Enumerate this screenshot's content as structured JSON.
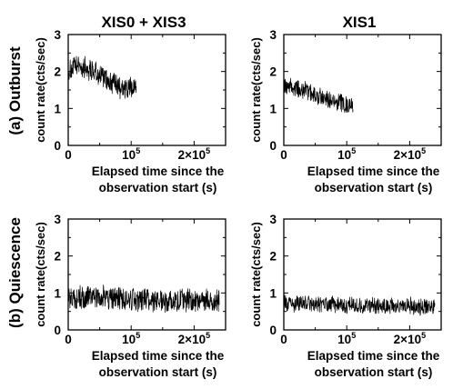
{
  "columns": [
    "XIS0 + XIS3",
    "XIS1"
  ],
  "rows": [
    "(a) Outburst",
    "(b) Quiescence"
  ],
  "chart_data": [
    {
      "type": "line",
      "row": 0,
      "col": 0,
      "ylabel": "count rate(cts/sec)",
      "xlabel_line1": "Elapsed time since the",
      "xlabel_line2": "observation start (s)",
      "xlim": [
        0,
        250000
      ],
      "ylim": [
        0,
        3
      ],
      "xticks": [
        {
          "v": 0,
          "m": "0",
          "e": ""
        },
        {
          "v": 100000,
          "m": "10",
          "e": "5"
        },
        {
          "v": 200000,
          "m": "2×10",
          "e": "5"
        }
      ],
      "yticks": [
        0,
        1,
        2,
        3
      ],
      "x_end": 108000,
      "trend": [
        [
          0,
          2.0
        ],
        [
          15000,
          2.15
        ],
        [
          30000,
          2.1
        ],
        [
          50000,
          1.9
        ],
        [
          70000,
          1.7
        ],
        [
          85000,
          1.55
        ],
        [
          95000,
          1.5
        ],
        [
          108000,
          1.6
        ]
      ],
      "amplitude": 0.28
    },
    {
      "type": "line",
      "row": 0,
      "col": 1,
      "ylabel": "count rate(cts/sec)",
      "xlabel_line1": "Elapsed time since the",
      "xlabel_line2": "observation start (s)",
      "xlim": [
        0,
        250000
      ],
      "ylim": [
        0,
        3
      ],
      "xticks": [
        {
          "v": 0,
          "m": "0",
          "e": ""
        },
        {
          "v": 100000,
          "m": "10",
          "e": "5"
        },
        {
          "v": 200000,
          "m": "2×10",
          "e": "5"
        }
      ],
      "yticks": [
        0,
        1,
        2,
        3
      ],
      "x_end": 110000,
      "trend": [
        [
          0,
          1.6
        ],
        [
          20000,
          1.55
        ],
        [
          40000,
          1.45
        ],
        [
          60000,
          1.3
        ],
        [
          80000,
          1.2
        ],
        [
          100000,
          1.1
        ],
        [
          110000,
          1.1
        ]
      ],
      "amplitude": 0.22
    },
    {
      "type": "line",
      "row": 1,
      "col": 0,
      "ylabel": "count rate(cts/sec)",
      "xlabel_line1": "Elapsed time since the",
      "xlabel_line2": "observation start (s)",
      "xlim": [
        0,
        250000
      ],
      "ylim": [
        0,
        3
      ],
      "xticks": [
        {
          "v": 0,
          "m": "0",
          "e": ""
        },
        {
          "v": 100000,
          "m": "10",
          "e": "5"
        },
        {
          "v": 200000,
          "m": "2×10",
          "e": "5"
        }
      ],
      "yticks": [
        0,
        1,
        2,
        3
      ],
      "x_end": 240000,
      "trend": [
        [
          0,
          0.85
        ],
        [
          40000,
          0.9
        ],
        [
          80000,
          0.85
        ],
        [
          120000,
          0.8
        ],
        [
          160000,
          0.8
        ],
        [
          200000,
          0.8
        ],
        [
          240000,
          0.78
        ]
      ],
      "amplitude": 0.3
    },
    {
      "type": "line",
      "row": 1,
      "col": 1,
      "ylabel": "count rate(cts/sec)",
      "xlabel_line1": "Elapsed time since the",
      "xlabel_line2": "observation start (s)",
      "xlim": [
        0,
        250000
      ],
      "ylim": [
        0,
        3
      ],
      "xticks": [
        {
          "v": 0,
          "m": "0",
          "e": ""
        },
        {
          "v": 100000,
          "m": "10",
          "e": "5"
        },
        {
          "v": 200000,
          "m": "2×10",
          "e": "5"
        }
      ],
      "yticks": [
        0,
        1,
        2,
        3
      ],
      "x_end": 240000,
      "trend": [
        [
          0,
          0.7
        ],
        [
          40000,
          0.7
        ],
        [
          80000,
          0.68
        ],
        [
          120000,
          0.65
        ],
        [
          160000,
          0.65
        ],
        [
          200000,
          0.65
        ],
        [
          240000,
          0.62
        ]
      ],
      "amplitude": 0.2
    }
  ]
}
